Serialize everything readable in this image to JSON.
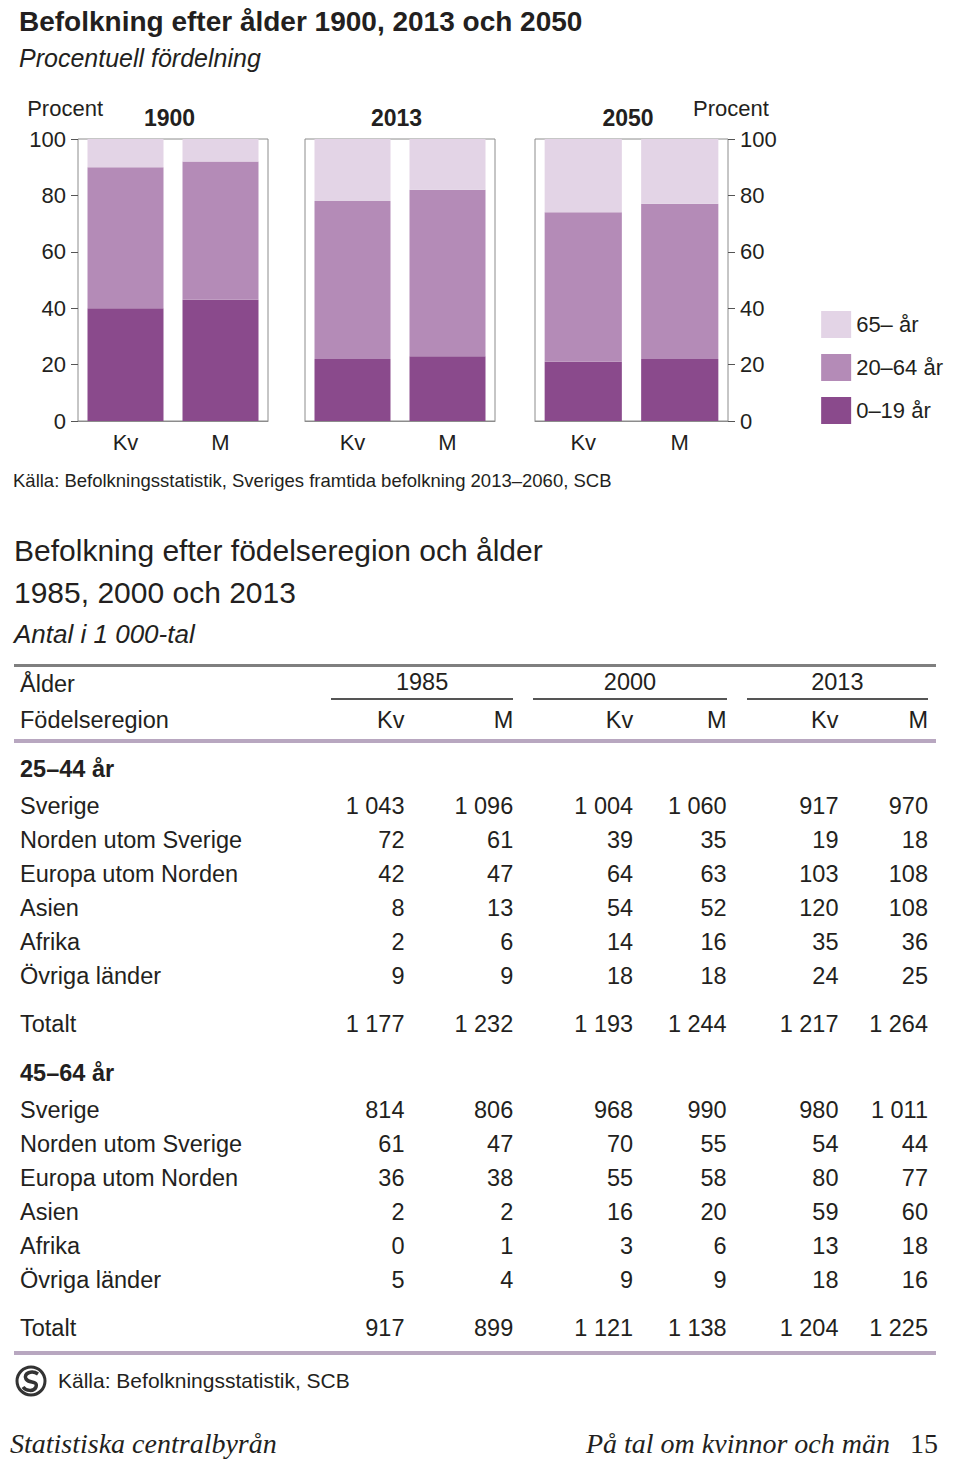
{
  "chart_data": {
    "type": "bar",
    "stacked": true,
    "title": "Befolkning efter ålder 1900, 2013 och 2050",
    "subtitle": "Procentuell fördelning",
    "groups": [
      "1900",
      "2013",
      "2050"
    ],
    "categories": [
      "Kv",
      "M",
      "Kv",
      "M",
      "Kv",
      "M"
    ],
    "y_label": "Procent",
    "ylim": [
      0,
      100
    ],
    "yticks": [
      0,
      20,
      40,
      60,
      80,
      100
    ],
    "grid": false,
    "legend": "right",
    "series": [
      {
        "name": "0–19 år",
        "color": "#8a4a8c",
        "values": [
          40,
          43,
          22,
          23,
          21,
          22
        ]
      },
      {
        "name": "20–64 år",
        "color": "#b48bb7",
        "values": [
          50,
          49,
          56,
          59,
          53,
          55
        ]
      },
      {
        "name": "65– år",
        "color": "#e3d4e6",
        "values": [
          10,
          8,
          22,
          18,
          26,
          23
        ]
      }
    ],
    "source": "Källa: Befolkningsstatistik, Sveriges framtida befolkning 2013–2060, SCB"
  },
  "table": {
    "title": [
      "Befolkning efter födelseregion och ålder",
      "1985, 2000 och 2013"
    ],
    "subtitle": "Antal i 1 000-tal",
    "header": {
      "row_label": "Ålder",
      "years": [
        "1985",
        "2000",
        "2013"
      ],
      "region_label": "Födelseregion",
      "sexes": [
        "Kv",
        "M"
      ]
    },
    "sections": [
      {
        "label": "25–44 år",
        "rows": [
          {
            "label": "Sverige",
            "values": [
              "1 043",
              "1 096",
              "1 004",
              "1 060",
              "917",
              "970"
            ]
          },
          {
            "label": "Norden utom Sverige",
            "values": [
              "72",
              "61",
              "39",
              "35",
              "19",
              "18"
            ]
          },
          {
            "label": "Europa utom Norden",
            "values": [
              "42",
              "47",
              "64",
              "63",
              "103",
              "108"
            ]
          },
          {
            "label": "Asien",
            "values": [
              "8",
              "13",
              "54",
              "52",
              "120",
              "108"
            ]
          },
          {
            "label": "Afrika",
            "values": [
              "2",
              "6",
              "14",
              "16",
              "35",
              "36"
            ]
          },
          {
            "label": "Övriga länder",
            "values": [
              "9",
              "9",
              "18",
              "18",
              "24",
              "25"
            ]
          }
        ],
        "total": {
          "label": "Totalt",
          "values": [
            "1 177",
            "1 232",
            "1 193",
            "1 244",
            "1 217",
            "1 264"
          ]
        }
      },
      {
        "label": "45–64 år",
        "rows": [
          {
            "label": "Sverige",
            "values": [
              "814",
              "806",
              "968",
              "990",
              "980",
              "1 011"
            ]
          },
          {
            "label": "Norden utom Sverige",
            "values": [
              "61",
              "47",
              "70",
              "55",
              "54",
              "44"
            ]
          },
          {
            "label": "Europa utom Norden",
            "values": [
              "36",
              "38",
              "55",
              "58",
              "80",
              "77"
            ]
          },
          {
            "label": "Asien",
            "values": [
              "2",
              "2",
              "16",
              "20",
              "59",
              "60"
            ]
          },
          {
            "label": "Afrika",
            "values": [
              "0",
              "1",
              "3",
              "6",
              "13",
              "18"
            ]
          },
          {
            "label": "Övriga länder",
            "values": [
              "5",
              "4",
              "9",
              "9",
              "18",
              "16"
            ]
          }
        ],
        "total": {
          "label": "Totalt",
          "values": [
            "917",
            "899",
            "1 121",
            "1 138",
            "1 204",
            "1 225"
          ]
        }
      }
    ],
    "source": "Källa: Befolkningsstatistik, SCB"
  },
  "footer": {
    "left": "Statistiska centralbyrån",
    "right": "På tal om kvinnor och män",
    "page": "15"
  }
}
